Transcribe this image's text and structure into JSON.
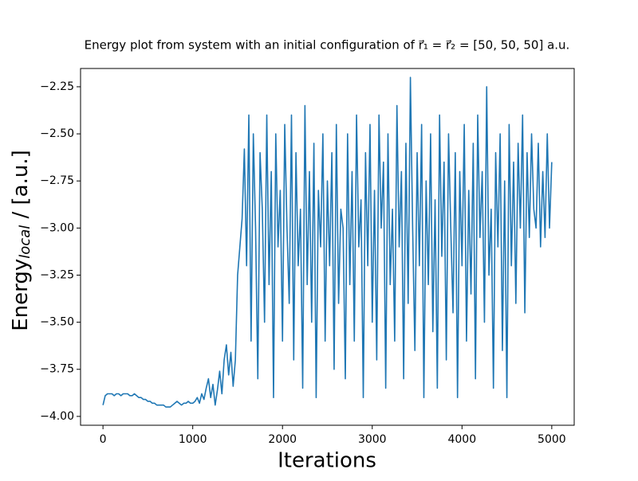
{
  "chart_data": {
    "type": "line",
    "title": "Energy plot from system with an initial configuration of r⃗₁ = r⃗₂ = [50, 50, 50] a.u.",
    "xlabel": "Iterations",
    "ylabel": "Energy",
    "ylabel_sub": "local",
    "ylabel_tail": " / [a.u.]",
    "xlim": [
      -250,
      5250
    ],
    "ylim": [
      -4.047,
      -2.153
    ],
    "xticks": [
      0,
      1000,
      2000,
      3000,
      4000,
      5000
    ],
    "yticks": [
      {
        "value": -4.0,
        "label": "−4.00"
      },
      {
        "value": -3.75,
        "label": "−3.75"
      },
      {
        "value": -3.5,
        "label": "−3.50"
      },
      {
        "value": -3.25,
        "label": "−3.25"
      },
      {
        "value": -3.0,
        "label": "−3.00"
      },
      {
        "value": -2.75,
        "label": "−2.75"
      },
      {
        "value": -2.5,
        "label": "−2.50"
      },
      {
        "value": -2.25,
        "label": "−2.25"
      }
    ],
    "grid": false,
    "x": [
      0,
      25,
      50,
      75,
      100,
      125,
      150,
      175,
      200,
      225,
      250,
      275,
      300,
      325,
      350,
      375,
      400,
      425,
      450,
      475,
      500,
      525,
      550,
      575,
      600,
      625,
      650,
      675,
      700,
      725,
      750,
      775,
      800,
      825,
      850,
      875,
      900,
      925,
      950,
      975,
      1000,
      1025,
      1050,
      1075,
      1100,
      1125,
      1150,
      1175,
      1200,
      1225,
      1250,
      1275,
      1300,
      1325,
      1350,
      1375,
      1400,
      1425,
      1450,
      1475,
      1500,
      1525,
      1550,
      1575,
      1600,
      1625,
      1650,
      1675,
      1700,
      1725,
      1750,
      1775,
      1800,
      1825,
      1850,
      1875,
      1900,
      1925,
      1950,
      1975,
      2000,
      2025,
      2050,
      2075,
      2100,
      2125,
      2150,
      2175,
      2200,
      2225,
      2250,
      2275,
      2300,
      2325,
      2350,
      2375,
      2400,
      2425,
      2450,
      2475,
      2500,
      2525,
      2550,
      2575,
      2600,
      2625,
      2650,
      2675,
      2700,
      2725,
      2750,
      2775,
      2800,
      2825,
      2850,
      2875,
      2900,
      2925,
      2950,
      2975,
      3000,
      3025,
      3050,
      3075,
      3100,
      3125,
      3150,
      3175,
      3200,
      3225,
      3250,
      3275,
      3300,
      3325,
      3350,
      3375,
      3400,
      3425,
      3450,
      3475,
      3500,
      3525,
      3550,
      3575,
      3600,
      3625,
      3650,
      3675,
      3700,
      3725,
      3750,
      3775,
      3800,
      3825,
      3850,
      3875,
      3900,
      3925,
      3950,
      3975,
      4000,
      4025,
      4050,
      4075,
      4100,
      4125,
      4150,
      4175,
      4200,
      4225,
      4250,
      4275,
      4300,
      4325,
      4350,
      4375,
      4400,
      4425,
      4450,
      4475,
      4500,
      4525,
      4550,
      4575,
      4600,
      4625,
      4650,
      4675,
      4700,
      4725,
      4750,
      4775,
      4800,
      4825,
      4850,
      4875,
      4900,
      4925,
      4950,
      4975,
      5000
    ],
    "series": [
      {
        "color": "#1f77b4",
        "values": [
          -3.94,
          -3.89,
          -3.88,
          -3.88,
          -3.88,
          -3.89,
          -3.88,
          -3.88,
          -3.89,
          -3.88,
          -3.88,
          -3.88,
          -3.89,
          -3.89,
          -3.88,
          -3.89,
          -3.9,
          -3.9,
          -3.91,
          -3.91,
          -3.92,
          -3.92,
          -3.93,
          -3.93,
          -3.94,
          -3.94,
          -3.94,
          -3.94,
          -3.95,
          -3.95,
          -3.95,
          -3.94,
          -3.93,
          -3.92,
          -3.93,
          -3.94,
          -3.93,
          -3.93,
          -3.92,
          -3.93,
          -3.93,
          -3.92,
          -3.9,
          -3.93,
          -3.88,
          -3.91,
          -3.85,
          -3.8,
          -3.9,
          -3.83,
          -3.94,
          -3.86,
          -3.76,
          -3.88,
          -3.7,
          -3.62,
          -3.78,
          -3.66,
          -3.84,
          -3.7,
          -3.25,
          -3.1,
          -2.95,
          -2.58,
          -3.2,
          -2.4,
          -3.6,
          -2.5,
          -3.0,
          -3.8,
          -2.6,
          -2.9,
          -3.5,
          -2.4,
          -3.3,
          -2.7,
          -3.9,
          -2.5,
          -3.1,
          -2.8,
          -3.6,
          -2.45,
          -3.0,
          -3.4,
          -2.4,
          -3.7,
          -2.6,
          -3.2,
          -2.9,
          -3.85,
          -2.35,
          -3.3,
          -2.7,
          -3.5,
          -2.55,
          -3.9,
          -2.8,
          -3.1,
          -2.5,
          -3.6,
          -2.75,
          -3.2,
          -2.6,
          -3.75,
          -2.45,
          -3.4,
          -2.9,
          -3.0,
          -3.8,
          -2.5,
          -3.3,
          -2.7,
          -3.6,
          -2.4,
          -3.1,
          -2.85,
          -3.9,
          -2.6,
          -3.2,
          -2.45,
          -3.5,
          -2.8,
          -3.7,
          -2.4,
          -3.0,
          -2.65,
          -3.85,
          -2.5,
          -3.3,
          -2.9,
          -3.6,
          -2.35,
          -3.1,
          -2.7,
          -3.8,
          -2.55,
          -3.4,
          -2.2,
          -3.0,
          -3.65,
          -2.6,
          -3.2,
          -2.45,
          -3.9,
          -2.75,
          -3.3,
          -2.5,
          -3.55,
          -2.85,
          -3.85,
          -2.4,
          -3.15,
          -2.65,
          -3.7,
          -2.5,
          -3.0,
          -3.45,
          -2.6,
          -3.9,
          -2.7,
          -3.2,
          -2.45,
          -3.6,
          -2.8,
          -3.35,
          -2.55,
          -3.8,
          -2.4,
          -3.05,
          -2.7,
          -3.5,
          -2.25,
          -3.25,
          -2.9,
          -3.85,
          -2.6,
          -3.1,
          -2.5,
          -3.65,
          -2.75,
          -3.9,
          -2.45,
          -3.2,
          -2.65,
          -3.4,
          -2.55,
          -3.0,
          -2.4,
          -3.45,
          -2.6,
          -3.05,
          -2.5,
          -2.9,
          -3.0,
          -2.55,
          -3.1,
          -2.7,
          -3.05,
          -2.5,
          -3.0,
          -2.65
        ]
      }
    ]
  }
}
